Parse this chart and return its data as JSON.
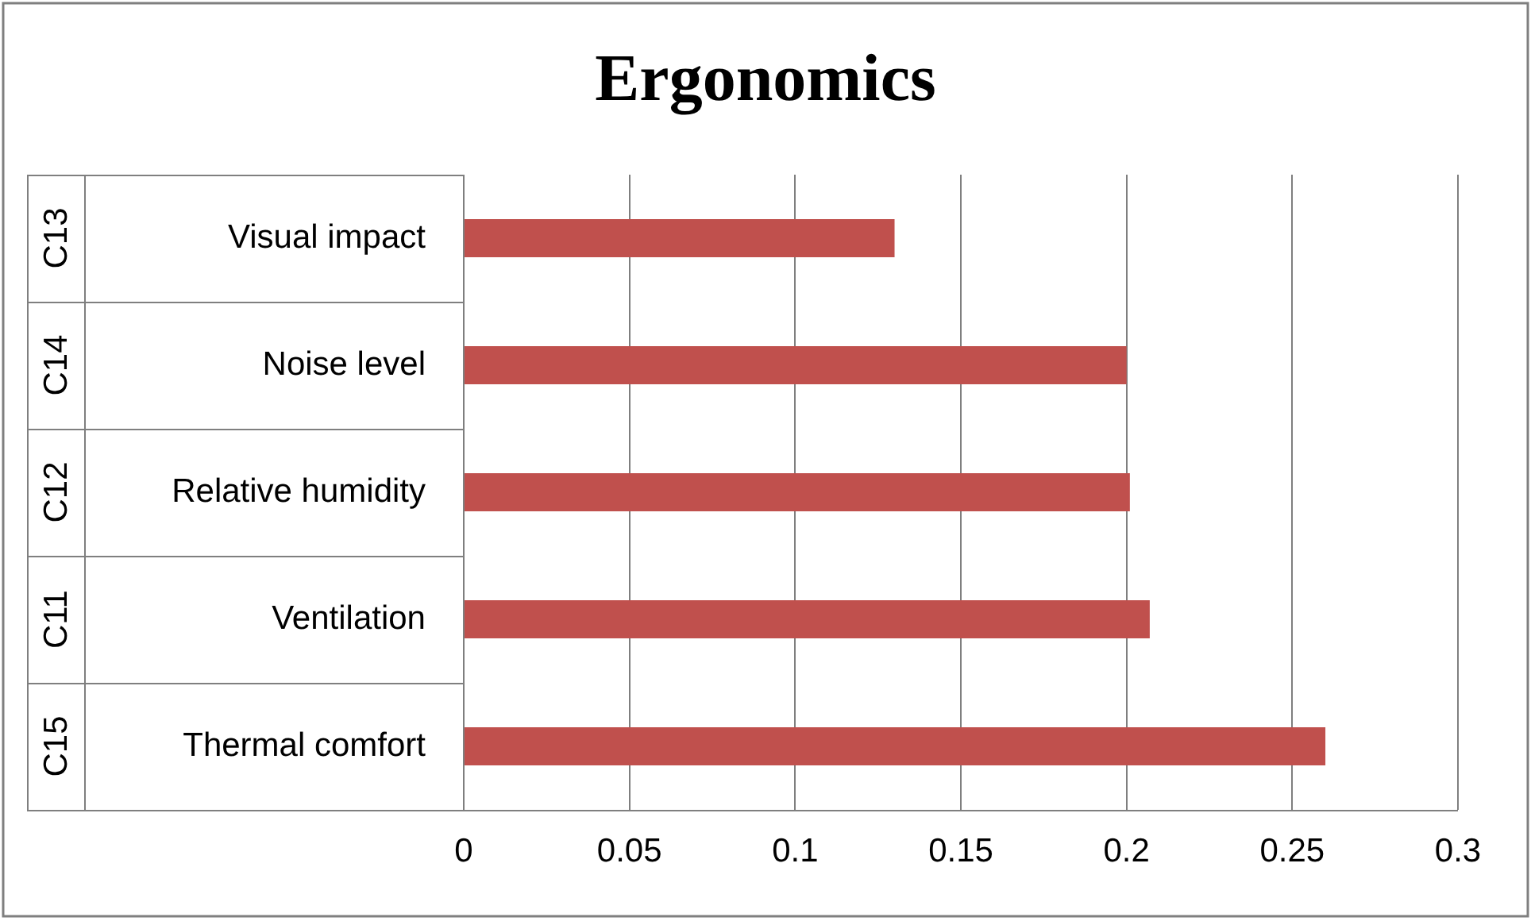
{
  "chart_data": {
    "type": "bar",
    "orientation": "horizontal",
    "title": "Ergonomics",
    "categories": [
      "Visual impact",
      "Noise level",
      "Relative humidity",
      "Ventilation",
      "Thermal comfort"
    ],
    "values": [
      0.13,
      0.2,
      0.201,
      0.207,
      0.26
    ],
    "color": "#c0504d",
    "xlim": [
      0,
      0.3
    ],
    "xticks": [
      0,
      0.05,
      0.1,
      0.15,
      0.2,
      0.25,
      0.3
    ],
    "grid": "x",
    "annotations": [
      "C13",
      "C14",
      "C12",
      "C11",
      "C15"
    ]
  }
}
